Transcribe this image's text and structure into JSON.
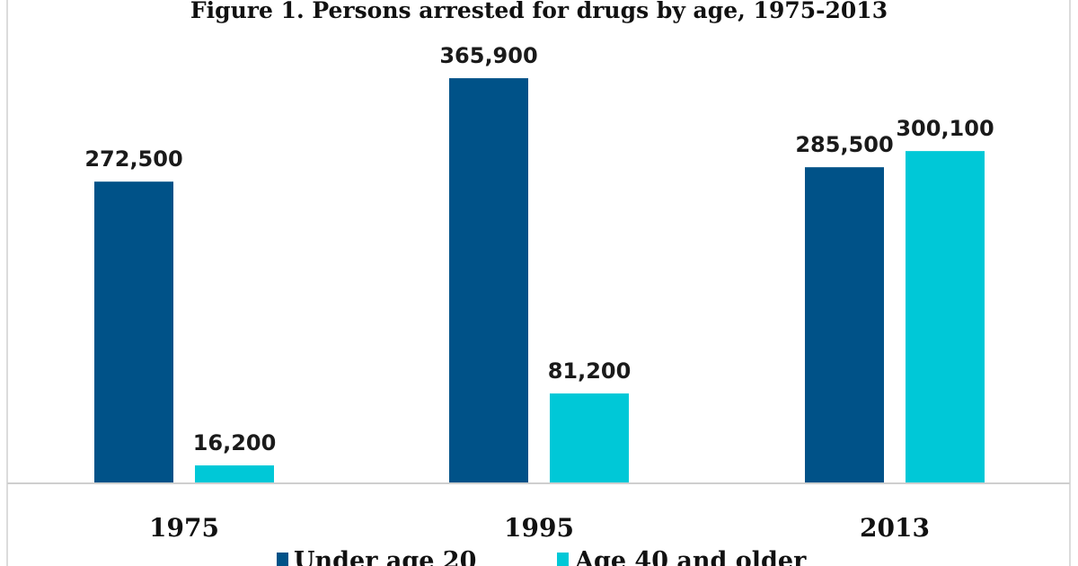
{
  "chart_data": {
    "type": "bar",
    "title": "Figure 1. Persons arrested for drugs by age, 1975-2013",
    "xlabel": "",
    "ylabel": "",
    "categories": [
      "1975",
      "1995",
      "2013"
    ],
    "series": [
      {
        "name": "Under age 20",
        "color": "#005288",
        "values": [
          272500,
          365900,
          285500
        ],
        "labels": [
          "272,500",
          "365,900",
          "285,500"
        ]
      },
      {
        "name": "Age 40 and older",
        "color": "#00c8d7",
        "values": [
          16200,
          81200,
          300100
        ],
        "labels": [
          "16,200",
          "81,200",
          "300,100"
        ]
      }
    ],
    "ylim": [
      0,
      370000
    ],
    "grid": false,
    "legend_position": "bottom"
  }
}
